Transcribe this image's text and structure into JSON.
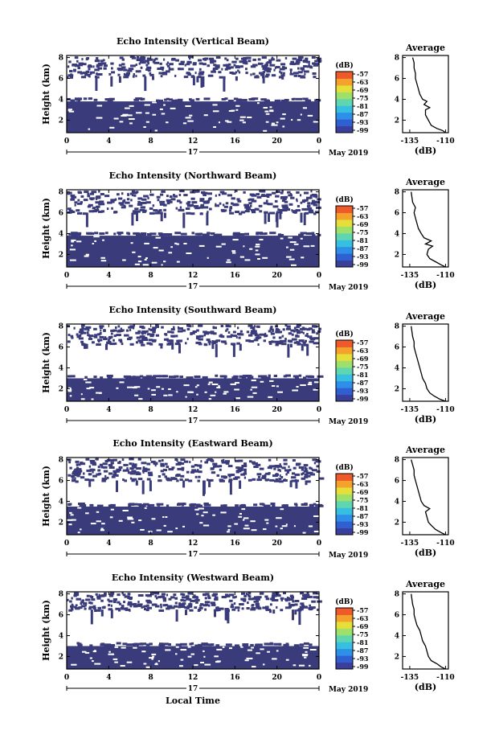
{
  "figure": {
    "date_label": "May 2019",
    "xaxis_label": "Local Time",
    "day_label": "17"
  },
  "chart_data": [
    {
      "type": "heatmap",
      "title": "Echo Intensity (Vertical Beam)",
      "ylabel": "Height (km)",
      "xticks": [
        "0",
        "4",
        "8",
        "12",
        "16",
        "20",
        "0"
      ],
      "yticks": [
        "2",
        "4",
        "6",
        "8"
      ],
      "xlim": [
        0,
        24
      ],
      "ylim": [
        0.8,
        8.2
      ],
      "dense_below_km": 3.8,
      "sparse_above_km": 6.2,
      "colorbar": {
        "label": "(dB)",
        "ticks": [
          "-57",
          "-63",
          "-69",
          "-75",
          "-81",
          "-87",
          "-93",
          "-99"
        ]
      },
      "average": {
        "title": "Average",
        "xlabel": "(dB)",
        "xticks": [
          "-135",
          "-110"
        ],
        "yticks": [
          "2",
          "4",
          "6",
          "8"
        ],
        "profile": [
          [
            0.8,
            -110
          ],
          [
            1.0,
            -112
          ],
          [
            1.2,
            -116
          ],
          [
            1.5,
            -120
          ],
          [
            2.0,
            -122
          ],
          [
            2.5,
            -124
          ],
          [
            3.0,
            -124
          ],
          [
            3.2,
            -121
          ],
          [
            3.5,
            -125
          ],
          [
            3.8,
            -123
          ],
          [
            4.0,
            -126
          ],
          [
            4.5,
            -128
          ],
          [
            5.0,
            -129
          ],
          [
            5.5,
            -130
          ],
          [
            6.0,
            -131
          ],
          [
            6.5,
            -131
          ],
          [
            7.0,
            -132
          ],
          [
            7.5,
            -132
          ],
          [
            8.0,
            -133
          ]
        ]
      }
    },
    {
      "type": "heatmap",
      "title": "Echo Intensity (Northward Beam)",
      "ylabel": "Height (km)",
      "xticks": [
        "0",
        "4",
        "8",
        "12",
        "16",
        "20",
        "0"
      ],
      "yticks": [
        "2",
        "4",
        "6",
        "8"
      ],
      "xlim": [
        0,
        24
      ],
      "ylim": [
        0.8,
        8.2
      ],
      "dense_below_km": 3.8,
      "sparse_above_km": 6.0,
      "colorbar": {
        "label": "(dB)",
        "ticks": [
          "-57",
          "-63",
          "-69",
          "-75",
          "-81",
          "-87",
          "-93",
          "-99"
        ]
      },
      "average": {
        "title": "Average",
        "xlabel": "(dB)",
        "xticks": [
          "-135",
          "-110"
        ],
        "yticks": [
          "2",
          "4",
          "6",
          "8"
        ],
        "profile": [
          [
            0.8,
            -110
          ],
          [
            1.0,
            -113
          ],
          [
            1.3,
            -117
          ],
          [
            1.6,
            -121
          ],
          [
            2.0,
            -123
          ],
          [
            2.5,
            -122
          ],
          [
            2.8,
            -119
          ],
          [
            3.0,
            -124
          ],
          [
            3.3,
            -120
          ],
          [
            3.6,
            -125
          ],
          [
            4.0,
            -127
          ],
          [
            4.5,
            -129
          ],
          [
            5.0,
            -130
          ],
          [
            5.5,
            -131
          ],
          [
            6.0,
            -132
          ],
          [
            6.5,
            -131
          ],
          [
            7.0,
            -133
          ],
          [
            8.0,
            -134
          ]
        ]
      }
    },
    {
      "type": "heatmap",
      "title": "Echo Intensity (Southward Beam)",
      "ylabel": "Height (km)",
      "xticks": [
        "0",
        "4",
        "8",
        "12",
        "16",
        "20",
        "0"
      ],
      "yticks": [
        "2",
        "4",
        "6",
        "8"
      ],
      "xlim": [
        0,
        24
      ],
      "ylim": [
        0.8,
        8.2
      ],
      "dense_below_km": 3.0,
      "sparse_above_km": 6.3,
      "colorbar": {
        "label": "(dB)",
        "ticks": [
          "-57",
          "-63",
          "-69",
          "-75",
          "-81",
          "-87",
          "-93",
          "-99"
        ]
      },
      "average": {
        "title": "Average",
        "xlabel": "(dB)",
        "xticks": [
          "-135",
          "-110"
        ],
        "yticks": [
          "2",
          "4",
          "6",
          "8"
        ],
        "profile": [
          [
            0.8,
            -110
          ],
          [
            1.0,
            -114
          ],
          [
            1.3,
            -118
          ],
          [
            1.6,
            -121
          ],
          [
            2.0,
            -123
          ],
          [
            2.5,
            -124
          ],
          [
            3.0,
            -126
          ],
          [
            3.5,
            -127
          ],
          [
            4.0,
            -128
          ],
          [
            4.5,
            -129
          ],
          [
            5.0,
            -130
          ],
          [
            5.5,
            -131
          ],
          [
            6.0,
            -132
          ],
          [
            6.5,
            -132
          ],
          [
            7.0,
            -133
          ],
          [
            8.0,
            -134
          ]
        ]
      }
    },
    {
      "type": "heatmap",
      "title": "Echo Intensity (Eastward Beam)",
      "ylabel": "Height (km)",
      "xticks": [
        "0",
        "4",
        "8",
        "12",
        "16",
        "20",
        "0"
      ],
      "yticks": [
        "2",
        "4",
        "6",
        "8"
      ],
      "xlim": [
        0,
        24
      ],
      "ylim": [
        0.8,
        8.2
      ],
      "dense_below_km": 3.5,
      "sparse_above_km": 6.0,
      "colorbar": {
        "label": "(dB)",
        "ticks": [
          "-57",
          "-63",
          "-69",
          "-75",
          "-81",
          "-87",
          "-93",
          "-99"
        ]
      },
      "average": {
        "title": "Average",
        "xlabel": "(dB)",
        "xticks": [
          "-135",
          "-110"
        ],
        "yticks": [
          "2",
          "4",
          "6",
          "8"
        ],
        "profile": [
          [
            0.8,
            -110
          ],
          [
            1.0,
            -113
          ],
          [
            1.3,
            -117
          ],
          [
            1.7,
            -120
          ],
          [
            2.0,
            -122
          ],
          [
            2.5,
            -123
          ],
          [
            3.0,
            -124
          ],
          [
            3.3,
            -121
          ],
          [
            3.6,
            -125
          ],
          [
            4.0,
            -127
          ],
          [
            4.5,
            -128
          ],
          [
            5.0,
            -129
          ],
          [
            5.5,
            -130
          ],
          [
            6.0,
            -131
          ],
          [
            6.5,
            -132
          ],
          [
            7.0,
            -132
          ],
          [
            8.0,
            -134
          ]
        ]
      }
    },
    {
      "type": "heatmap",
      "title": "Echo Intensity (Westward Beam)",
      "ylabel": "Height (km)",
      "xticks": [
        "0",
        "4",
        "8",
        "12",
        "16",
        "20",
        "0"
      ],
      "yticks": [
        "2",
        "4",
        "6",
        "8"
      ],
      "xlim": [
        0,
        24
      ],
      "ylim": [
        0.8,
        8.2
      ],
      "dense_below_km": 3.0,
      "sparse_above_km": 6.5,
      "colorbar": {
        "label": "(dB)",
        "ticks": [
          "-57",
          "-63",
          "-69",
          "-75",
          "-81",
          "-87",
          "-93",
          "-99"
        ]
      },
      "average": {
        "title": "Average",
        "xlabel": "(dB)",
        "xticks": [
          "-135",
          "-110"
        ],
        "yticks": [
          "2",
          "4",
          "6",
          "8"
        ],
        "profile": [
          [
            0.8,
            -110
          ],
          [
            1.0,
            -113
          ],
          [
            1.3,
            -116
          ],
          [
            1.6,
            -120
          ],
          [
            2.0,
            -122
          ],
          [
            2.5,
            -123
          ],
          [
            3.0,
            -124
          ],
          [
            3.5,
            -126
          ],
          [
            4.0,
            -127
          ],
          [
            4.5,
            -128
          ],
          [
            5.0,
            -130
          ],
          [
            5.5,
            -131
          ],
          [
            6.0,
            -132
          ],
          [
            6.5,
            -132
          ],
          [
            7.0,
            -133
          ],
          [
            8.0,
            -134
          ]
        ]
      }
    }
  ],
  "colors": {
    "fill": "#3a3b7a",
    "colorbar": [
      "#3b3f9c",
      "#2f5fd0",
      "#2e8fe8",
      "#36bfe0",
      "#5fd6b0",
      "#9ee06a",
      "#e6df3a",
      "#f5a22c",
      "#ef5a2a"
    ]
  }
}
